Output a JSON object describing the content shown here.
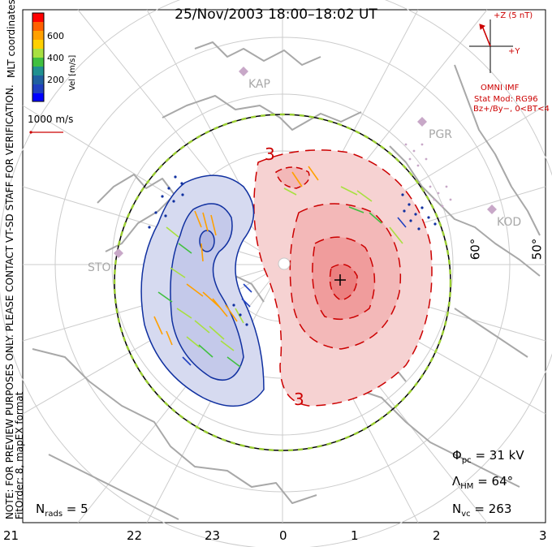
{
  "title": "25/Nov/2003  18:00–18:02 UT",
  "side_note": {
    "line1": "NOTE: FOR PREVIEW PURPOSES ONLY. PLEASE CONTACT VT-SD STAFF FOR VERIFICATION.",
    "line2": "FitOrder: 8, mapEX format"
  },
  "colorbar": {
    "label": "Vel [m/s]",
    "ticks": [
      "600",
      "400",
      "200"
    ],
    "coordinates_label": "MLT coordinates",
    "colors": [
      "#ff0000",
      "#ff6000",
      "#ffa000",
      "#ffd000",
      "#a8e040",
      "#40c040",
      "#209090",
      "#2060a0",
      "#2040c0",
      "#0000ff"
    ]
  },
  "vector_scale": "1000 m/s",
  "imf": {
    "z_label": "+Z (5 nT)",
    "y_label": "+Y",
    "source": "OMNI IMF",
    "model_line1": "Stat Mod: RG96",
    "model_line2": "Bz+/By−, 0<BT<4"
  },
  "sites": [
    "KAP",
    "PGR",
    "KOD",
    "STO"
  ],
  "contour_labels": [
    "3",
    "3"
  ],
  "lat_labels": [
    "60°",
    "50°"
  ],
  "mlt_labels": [
    "21",
    "22",
    "23",
    "0",
    "1",
    "2",
    "3"
  ],
  "stats": {
    "phi_symbol": "Φ",
    "phi_sub": "pc",
    "phi_value": " = 31 kV",
    "lambda_symbol": "Λ",
    "lambda_sub": "HM",
    "lambda_value": " = 64°",
    "nvc_symbol": "N",
    "nvc_sub": "vc",
    "nvc_value": " = 263"
  },
  "nrads": {
    "symbol": "N",
    "sub": "rads",
    "value": " = 5"
  },
  "colors": {
    "positive": "#cc0000",
    "positive_fill": "#f6d2d2",
    "negative": "#1030a0",
    "negative_fill": "#d6daf0",
    "land": "#a8a8a8",
    "grid": "#c8c8c8",
    "boundary_dash": "#9acd32"
  }
}
